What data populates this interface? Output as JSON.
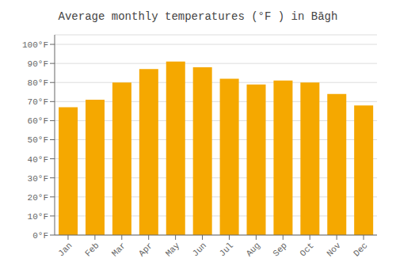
{
  "chart_data": {
    "type": "bar",
    "title": "Average monthly temperatures (°F ) in Bāgh",
    "categories": [
      "Jan",
      "Feb",
      "Mar",
      "Apr",
      "May",
      "Jun",
      "Jul",
      "Aug",
      "Sep",
      "Oct",
      "Nov",
      "Dec"
    ],
    "values": [
      67,
      71,
      80,
      87,
      91,
      88,
      82,
      79,
      81,
      80,
      74,
      68
    ],
    "color": "#F5A800",
    "ylim": [
      0,
      105
    ],
    "yticks": [
      {
        "value": 0,
        "label": "0°F"
      },
      {
        "value": 10,
        "label": "10°F"
      },
      {
        "value": 20,
        "label": "20°F"
      },
      {
        "value": 30,
        "label": "30°F"
      },
      {
        "value": 40,
        "label": "40°F"
      },
      {
        "value": 50,
        "label": "50°F"
      },
      {
        "value": 60,
        "label": "60°F"
      },
      {
        "value": 70,
        "label": "70°F"
      },
      {
        "value": 80,
        "label": "80°F"
      },
      {
        "value": 90,
        "label": "90°F"
      },
      {
        "value": 100,
        "label": "100°F"
      }
    ],
    "grid": true
  }
}
